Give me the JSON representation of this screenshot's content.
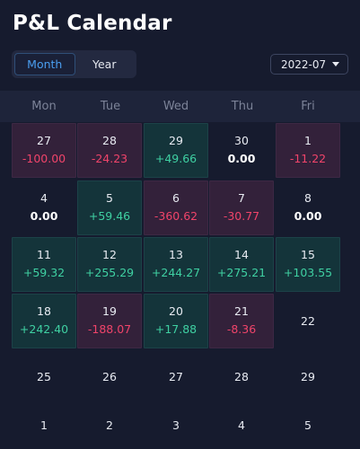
{
  "header": {
    "title": "P&L Calendar"
  },
  "view_toggle": {
    "month_label": "Month",
    "year_label": "Year",
    "selected": "Month"
  },
  "date_select": {
    "value": "2022-07"
  },
  "weekdays": [
    "Mon",
    "Tue",
    "Wed",
    "Thu",
    "Fri"
  ],
  "colors": {
    "positive": "#3fd0a2",
    "negative": "#f0446a",
    "accent": "#4a9ef0"
  },
  "weeks": [
    [
      {
        "day": "27",
        "pnl": "-100.00",
        "type": "neg"
      },
      {
        "day": "28",
        "pnl": "-24.23",
        "type": "neg"
      },
      {
        "day": "29",
        "pnl": "+49.66",
        "type": "pos"
      },
      {
        "day": "30",
        "pnl": "0.00",
        "type": "zero"
      },
      {
        "day": "1",
        "pnl": "-11.22",
        "type": "neg"
      }
    ],
    [
      {
        "day": "4",
        "pnl": "0.00",
        "type": "zero"
      },
      {
        "day": "5",
        "pnl": "+59.46",
        "type": "pos"
      },
      {
        "day": "6",
        "pnl": "-360.62",
        "type": "neg"
      },
      {
        "day": "7",
        "pnl": "-30.77",
        "type": "neg"
      },
      {
        "day": "8",
        "pnl": "0.00",
        "type": "zero"
      }
    ],
    [
      {
        "day": "11",
        "pnl": "+59.32",
        "type": "pos"
      },
      {
        "day": "12",
        "pnl": "+255.29",
        "type": "pos"
      },
      {
        "day": "13",
        "pnl": "+244.27",
        "type": "pos"
      },
      {
        "day": "14",
        "pnl": "+275.21",
        "type": "pos"
      },
      {
        "day": "15",
        "pnl": "+103.55",
        "type": "pos"
      }
    ],
    [
      {
        "day": "18",
        "pnl": "+242.40",
        "type": "pos"
      },
      {
        "day": "19",
        "pnl": "-188.07",
        "type": "neg"
      },
      {
        "day": "20",
        "pnl": "+17.88",
        "type": "pos"
      },
      {
        "day": "21",
        "pnl": "-8.36",
        "type": "neg"
      },
      {
        "day": "22",
        "pnl": "",
        "type": "none"
      }
    ],
    [
      {
        "day": "25",
        "pnl": "",
        "type": "none"
      },
      {
        "day": "26",
        "pnl": "",
        "type": "none"
      },
      {
        "day": "27",
        "pnl": "",
        "type": "none"
      },
      {
        "day": "28",
        "pnl": "",
        "type": "none"
      },
      {
        "day": "29",
        "pnl": "",
        "type": "none"
      }
    ],
    [
      {
        "day": "1",
        "pnl": "",
        "type": "none"
      },
      {
        "day": "2",
        "pnl": "",
        "type": "none"
      },
      {
        "day": "3",
        "pnl": "",
        "type": "none"
      },
      {
        "day": "4",
        "pnl": "",
        "type": "none"
      },
      {
        "day": "5",
        "pnl": "",
        "type": "none"
      }
    ]
  ]
}
